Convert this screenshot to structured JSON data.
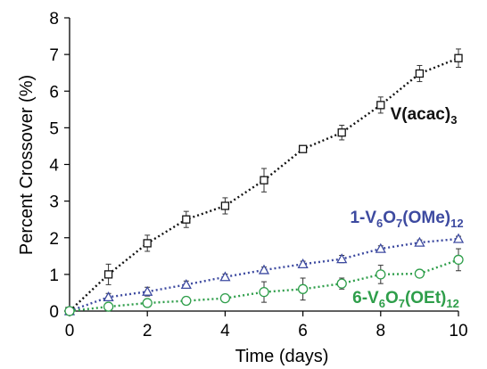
{
  "chart_data": {
    "type": "line",
    "xlabel": "Time (days)",
    "ylabel": "Percent Crossover (%)",
    "xlim": [
      0,
      10
    ],
    "ylim": [
      0,
      8
    ],
    "x_ticks": [
      "0",
      "2",
      "4",
      "6",
      "8",
      "10"
    ],
    "y_ticks": [
      "0",
      "1",
      "2",
      "3",
      "4",
      "5",
      "6",
      "7",
      "8"
    ],
    "grid": false,
    "series": [
      {
        "name": "V(acac)3",
        "color": "#111111",
        "marker": "square",
        "x": [
          0,
          1,
          2,
          3,
          4,
          5,
          6,
          7,
          8,
          9,
          10
        ],
        "y": [
          0,
          1.0,
          1.85,
          2.5,
          2.87,
          3.57,
          4.42,
          4.87,
          5.62,
          6.48,
          6.9
        ],
        "err": [
          0,
          0.28,
          0.22,
          0.22,
          0.22,
          0.32,
          0.08,
          0.2,
          0.22,
          0.22,
          0.25
        ],
        "label_parts": [
          {
            "t": "V(acac)",
            "sub": false
          },
          {
            "t": "3",
            "sub": true
          }
        ]
      },
      {
        "name": "1-V6O7(OMe)12",
        "color": "#3d4aa0",
        "marker": "triangle",
        "x": [
          0,
          1,
          2,
          3,
          4,
          5,
          6,
          7,
          8,
          9,
          10
        ],
        "y": [
          0,
          0.38,
          0.53,
          0.72,
          0.93,
          1.12,
          1.28,
          1.42,
          1.7,
          1.87,
          1.97
        ],
        "err": [
          0,
          0.1,
          0.12,
          0.1,
          0.08,
          0.08,
          0.08,
          0.1,
          0.08,
          0.07,
          0.07
        ],
        "label_parts": [
          {
            "t": "1-V",
            "sub": false
          },
          {
            "t": "6",
            "sub": true
          },
          {
            "t": "O",
            "sub": false
          },
          {
            "t": "7",
            "sub": true
          },
          {
            "t": "(OMe)",
            "sub": false
          },
          {
            "t": "12",
            "sub": true
          }
        ]
      },
      {
        "name": "6-V6O7(OEt)12",
        "color": "#2e9e4a",
        "marker": "circle",
        "x": [
          0,
          1,
          2,
          3,
          4,
          5,
          6,
          7,
          8,
          9,
          10
        ],
        "y": [
          0,
          0.12,
          0.22,
          0.28,
          0.35,
          0.52,
          0.6,
          0.75,
          1.0,
          1.02,
          1.4
        ],
        "err": [
          0,
          0.05,
          0.08,
          0.1,
          0.08,
          0.28,
          0.3,
          0.15,
          0.25,
          0.08,
          0.3
        ],
        "label_parts": [
          {
            "t": "6-V",
            "sub": false
          },
          {
            "t": "6",
            "sub": true
          },
          {
            "t": "O",
            "sub": false
          },
          {
            "t": "7",
            "sub": true
          },
          {
            "t": "(OEt)",
            "sub": false
          },
          {
            "t": "12",
            "sub": true
          }
        ]
      }
    ]
  }
}
